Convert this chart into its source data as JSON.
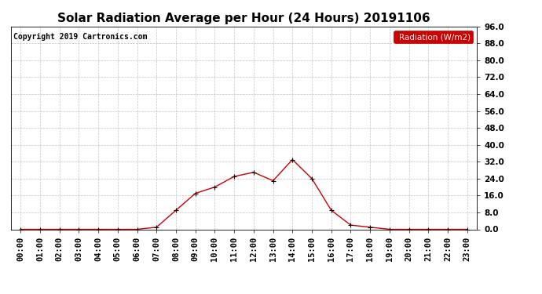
{
  "title": "Solar Radiation Average per Hour (24 Hours) 20191106",
  "copyright_text": "Copyright 2019 Cartronics.com",
  "legend_label": "Radiation (W/m2)",
  "hours": [
    "00:00",
    "01:00",
    "02:00",
    "03:00",
    "04:00",
    "05:00",
    "06:00",
    "07:00",
    "08:00",
    "09:00",
    "10:00",
    "11:00",
    "12:00",
    "13:00",
    "14:00",
    "15:00",
    "16:00",
    "17:00",
    "18:00",
    "19:00",
    "20:00",
    "21:00",
    "22:00",
    "23:00"
  ],
  "values": [
    0.0,
    0.0,
    0.0,
    0.0,
    0.0,
    0.0,
    0.0,
    1.0,
    9.0,
    17.0,
    20.0,
    25.0,
    27.0,
    23.0,
    33.0,
    24.0,
    9.0,
    2.0,
    1.0,
    0.0,
    0.0,
    0.0,
    0.0,
    0.0
  ],
  "line_color": "#cc0000",
  "marker_color": "#000000",
  "background_color": "#ffffff",
  "grid_color": "#aaaaaa",
  "ylim": [
    0.0,
    96.0
  ],
  "yticks": [
    0.0,
    8.0,
    16.0,
    24.0,
    32.0,
    40.0,
    48.0,
    56.0,
    64.0,
    72.0,
    80.0,
    88.0,
    96.0
  ],
  "title_fontsize": 11,
  "legend_fontsize": 7.5,
  "copyright_fontsize": 7,
  "tick_fontsize": 7.5
}
